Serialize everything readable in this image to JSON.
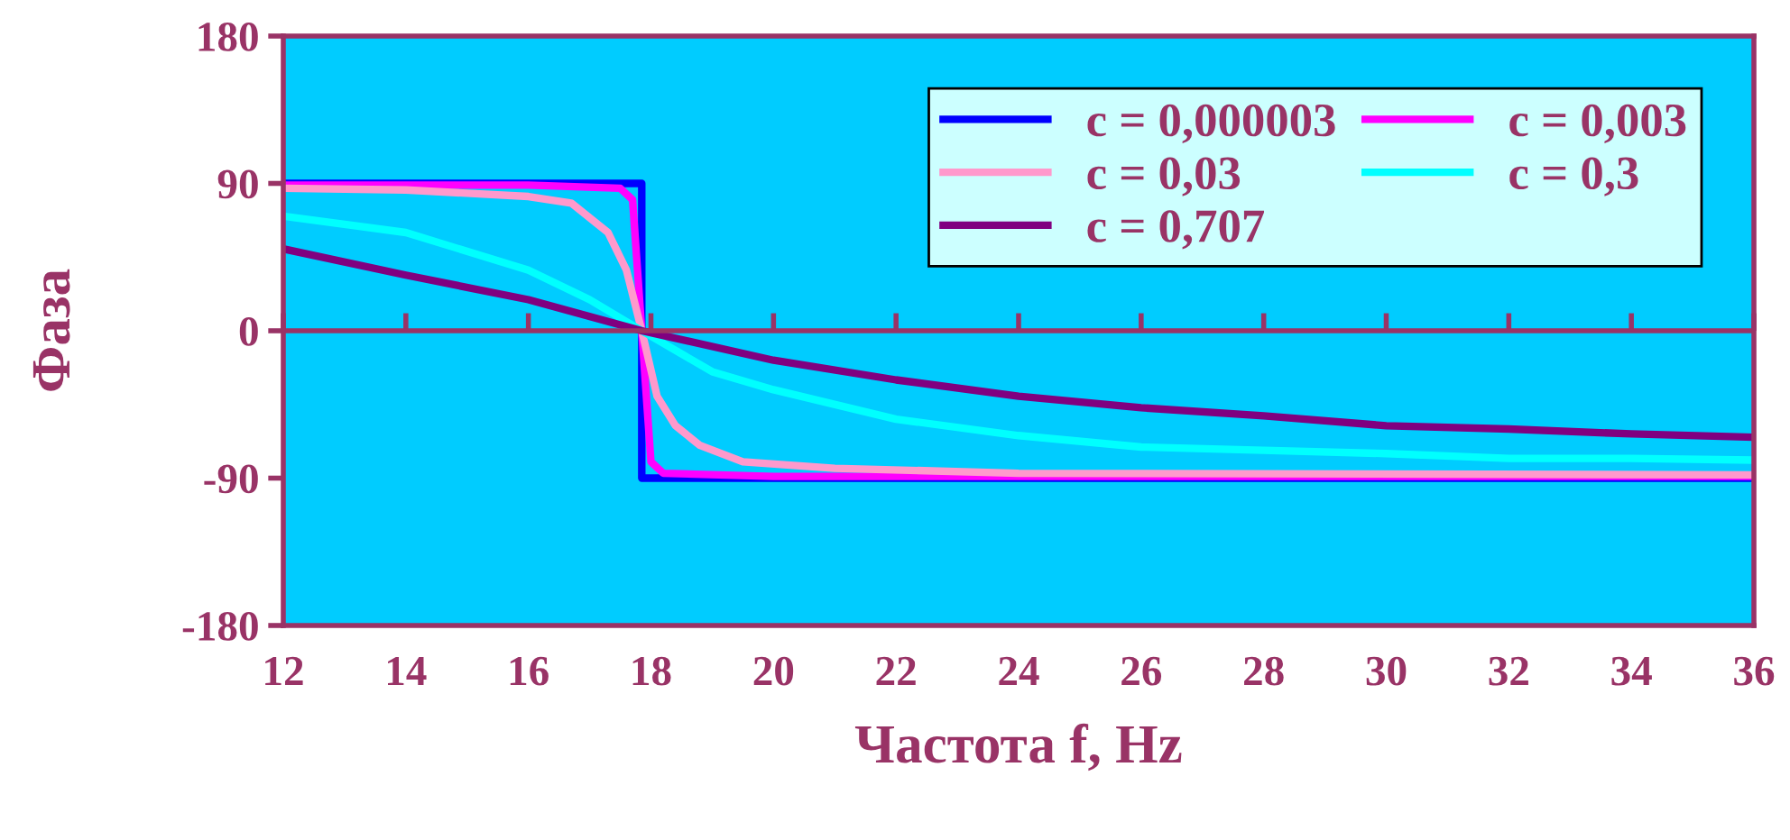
{
  "chart_data": {
    "type": "line",
    "xlabel": "Частота f, Hz",
    "ylabel": "Фаза",
    "xlim": [
      12,
      36
    ],
    "xticks": [
      12,
      14,
      16,
      18,
      20,
      22,
      24,
      26,
      28,
      30,
      32,
      34,
      36
    ],
    "ylim": [
      -180,
      180
    ],
    "yticks": [
      -180,
      -90,
      0,
      90,
      180
    ],
    "grid": false,
    "legend": "top right",
    "ref_lines": [
      {
        "axis": "y",
        "value": 0,
        "color": "#993366"
      }
    ],
    "marker": "none",
    "line_style": "solid",
    "series": [
      {
        "name": "c = 0,000003",
        "color": "#0000ff",
        "x": [
          12,
          17.85,
          17.85,
          36
        ],
        "values": [
          90,
          90,
          -90,
          -90
        ]
      },
      {
        "name": "c = 0,003",
        "color": "#ff00ff",
        "x": [
          12,
          16,
          17.5,
          17.7,
          17.85,
          18.0,
          18.2,
          20,
          36
        ],
        "values": [
          89,
          89,
          87,
          80,
          0,
          -80,
          -87,
          -89,
          -89
        ]
      },
      {
        "name": "c = 0,03",
        "color": "#ff99cc",
        "x": [
          12,
          14,
          16,
          16.7,
          17.3,
          17.6,
          17.85,
          18.1,
          18.4,
          18.8,
          19.5,
          21,
          24,
          36
        ],
        "values": [
          87,
          86,
          82,
          78,
          60,
          37,
          0,
          -40,
          -58,
          -70,
          -80,
          -84,
          -87,
          -88
        ]
      },
      {
        "name": "c = 0,3",
        "color": "#00ffff",
        "x": [
          12,
          14,
          16,
          17,
          17.85,
          19,
          20,
          22,
          24,
          26,
          28,
          30,
          32,
          34,
          36
        ],
        "values": [
          70,
          60,
          37,
          19,
          0,
          -25,
          -36,
          -54,
          -64,
          -71,
          -73,
          -75,
          -78,
          -78,
          -79
        ]
      },
      {
        "name": "c = 0,707",
        "color": "#800080",
        "x": [
          12,
          14,
          16,
          17.85,
          20,
          22,
          24,
          26,
          28,
          30,
          32,
          34,
          36
        ],
        "values": [
          50,
          34,
          19,
          0,
          -18,
          -30,
          -40,
          -47,
          -52,
          -58,
          -60,
          -63,
          -65
        ]
      }
    ]
  }
}
